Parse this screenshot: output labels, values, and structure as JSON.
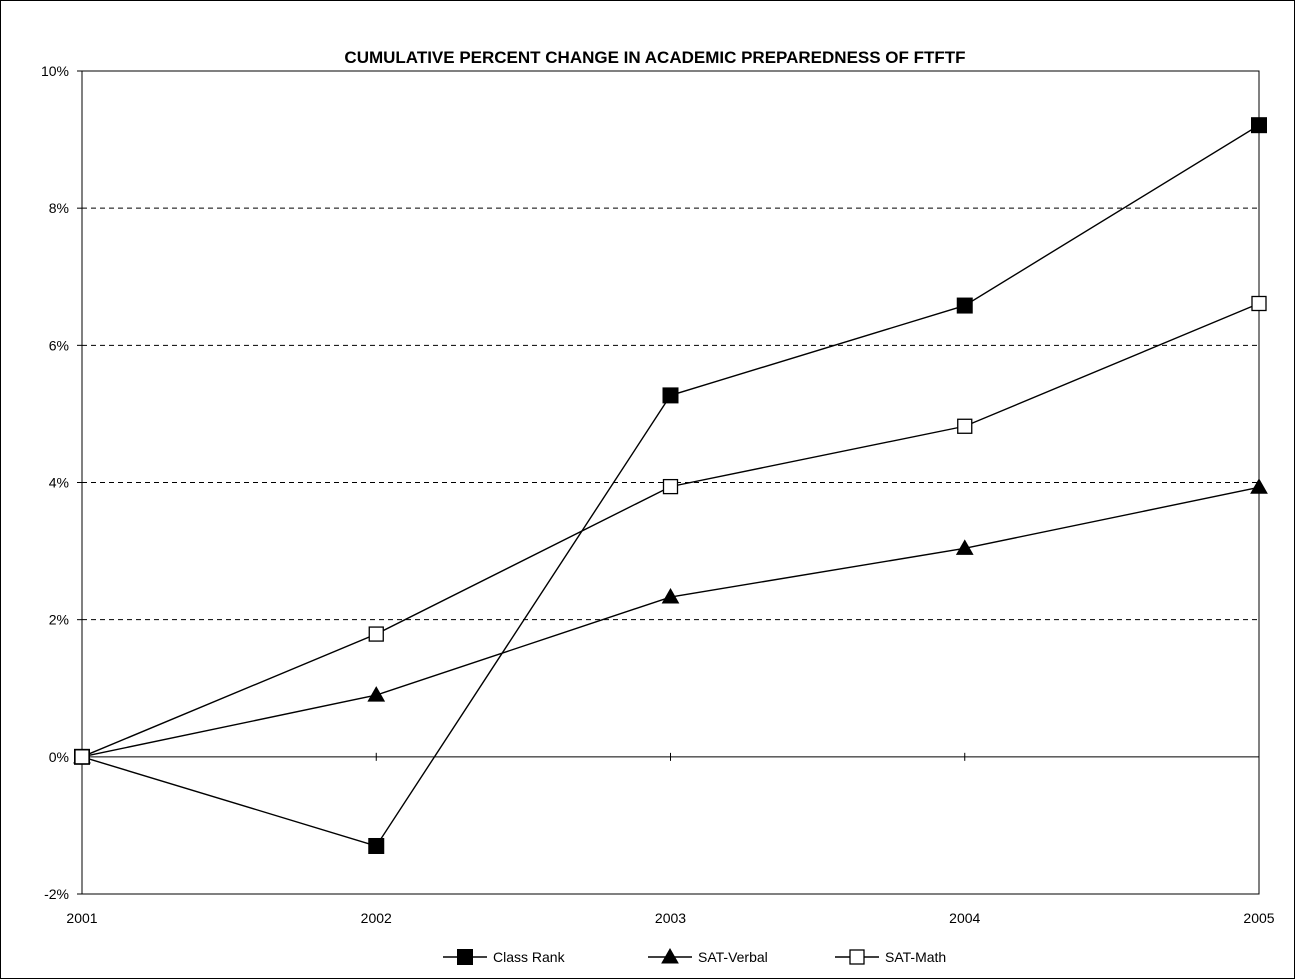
{
  "chart_data": {
    "type": "line",
    "title": "CUMULATIVE PERCENT CHANGE IN ACADEMIC PREPAREDNESS OF FTFTF",
    "xlabel": "",
    "ylabel": "",
    "categories": [
      "2001",
      "2002",
      "2003",
      "2004",
      "2005"
    ],
    "ylim": [
      -2,
      10
    ],
    "yticks": [
      -2,
      0,
      2,
      4,
      6,
      8,
      10
    ],
    "ytick_labels": [
      "-2%",
      "0%",
      "2%",
      "4%",
      "6%",
      "8%",
      "10%"
    ],
    "grid": "dashed horizontal",
    "legend_position": "bottom",
    "series": [
      {
        "name": "Class Rank",
        "marker": "filled-square",
        "color": "#000000",
        "values": [
          0,
          -1.3,
          5.27,
          6.58,
          9.21
        ]
      },
      {
        "name": "SAT-Verbal",
        "marker": "filled-triangle",
        "color": "#000000",
        "values": [
          0,
          0.9,
          2.33,
          3.04,
          3.93
        ]
      },
      {
        "name": "SAT-Math",
        "marker": "open-square",
        "color": "#000000",
        "values": [
          0,
          1.79,
          3.94,
          4.82,
          6.61
        ]
      }
    ]
  }
}
